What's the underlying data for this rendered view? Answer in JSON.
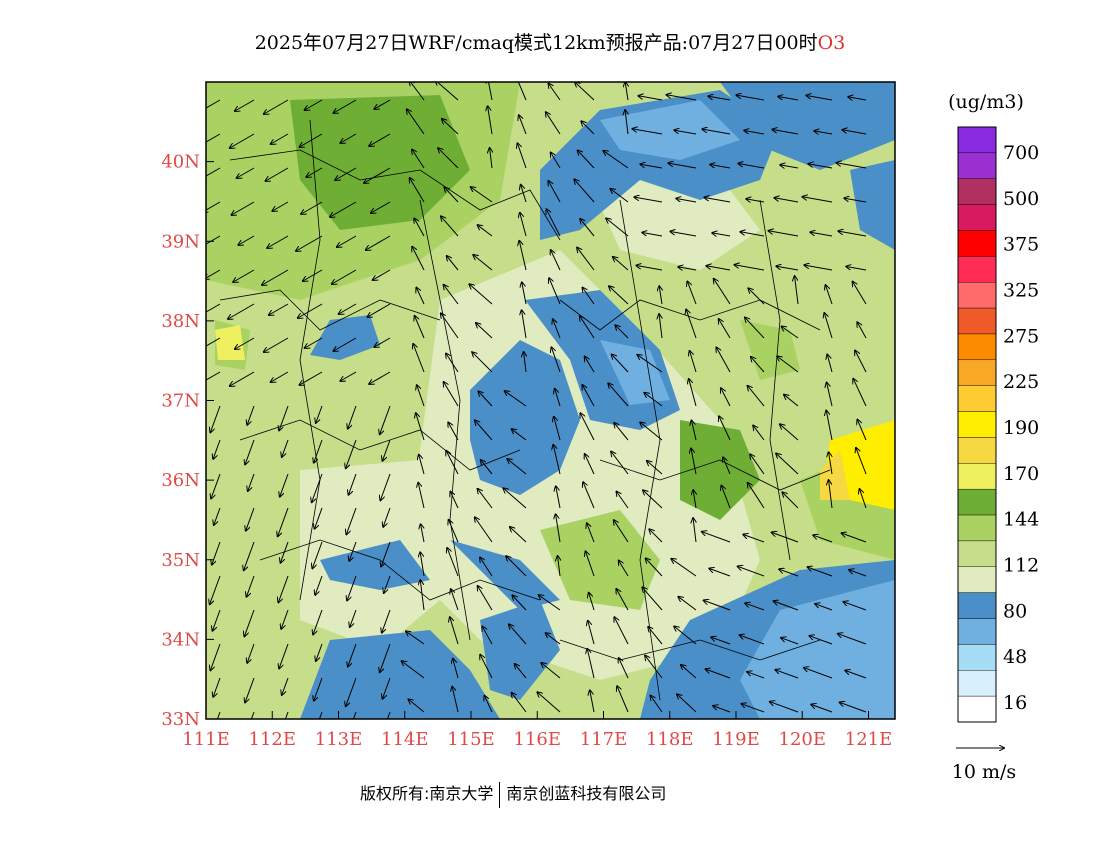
{
  "title": {
    "text": "2025年07月27日WRF/cmaq模式12km预报产品:07月27日00时",
    "species": "O3"
  },
  "axes": {
    "lon_labels": [
      "111E",
      "112E",
      "113E",
      "114E",
      "115E",
      "116E",
      "117E",
      "118E",
      "119E",
      "120E",
      "121E"
    ],
    "lat_labels": [
      "33N",
      "34N",
      "35N",
      "36N",
      "37N",
      "38N",
      "39N",
      "40N"
    ],
    "lon_range": [
      111,
      121.4
    ],
    "lat_range": [
      33,
      41
    ]
  },
  "colorbar": {
    "unit": "(ug/m3)",
    "labels": [
      "16",
      "48",
      "80",
      "112",
      "144",
      "170",
      "190",
      "225",
      "275",
      "325",
      "375",
      "500",
      "700"
    ],
    "colors": [
      "#ffffff",
      "#d7f0fb",
      "#a6dcf6",
      "#6fb0e0",
      "#4a8fc8",
      "#e0ebc0",
      "#c6dd8a",
      "#a9d263",
      "#6fae35",
      "#eef060",
      "#f5d842",
      "#ffee00",
      "#fdcc33",
      "#f9a825",
      "#fb8c00",
      "#f05a28",
      "#ff6b6b",
      "#ff2d55",
      "#ff0000",
      "#d81b60",
      "#b03060",
      "#9b30d0",
      "#8a2be2"
    ]
  },
  "wind_scale": {
    "label": "10 m/s"
  },
  "chart_data": {
    "type": "heatmap",
    "variable": "O3",
    "unit": "ug/m3",
    "xlabel": "",
    "ylabel": "",
    "x_ticks": [
      111,
      112,
      113,
      114,
      115,
      116,
      117,
      118,
      119,
      120,
      121
    ],
    "y_ticks": [
      33,
      34,
      35,
      36,
      37,
      38,
      39,
      40
    ],
    "regions": [
      {
        "level": "48-80",
        "lon": [
          115.5,
          116.8
        ],
        "lat": [
          36.0,
          37.6
        ]
      },
      {
        "level": "48-80",
        "lon": [
          116.6,
          118.2
        ],
        "lat": [
          38.8,
          40.6
        ]
      },
      {
        "level": "48-80",
        "lon": [
          118.8,
          121.4
        ],
        "lat": [
          33.0,
          34.6
        ]
      },
      {
        "level": "80-112",
        "lon": [
          114.5,
          116.5
        ],
        "lat": [
          34.0,
          36.4
        ]
      },
      {
        "level": "144-170",
        "lon": [
          111.0,
          114.0
        ],
        "lat": [
          38.0,
          40.6
        ]
      },
      {
        "level": "170-225",
        "lon": [
          120.2,
          121.4
        ],
        "lat": [
          35.7,
          36.8
        ]
      }
    ]
  },
  "credit": {
    "owner": "版权所有:南京大学",
    "company": "南京创蓝科技有限公司"
  }
}
